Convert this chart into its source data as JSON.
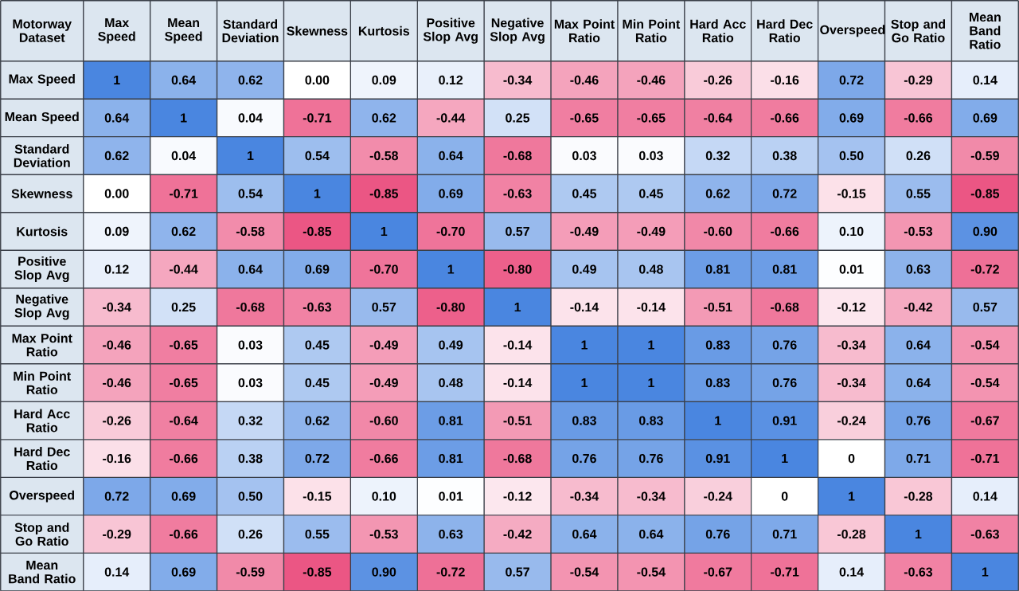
{
  "chart_data": {
    "type": "heatmap",
    "title": "Motorway Dataset",
    "categories": [
      "Max Speed",
      "Mean Speed",
      "Standard Deviation",
      "Skewness",
      "Kurtosis",
      "Positive Slop Avg",
      "Negative Slop Avg",
      "Max Point Ratio",
      "Min Point Ratio",
      "Hard Acc Ratio",
      "Hard Dec Ratio",
      "Overspeed",
      "Stop and Go Ratio",
      "Mean Band Ratio"
    ],
    "y_categories": [
      "Max Speed",
      "Mean Speed",
      "Standard Deviation",
      "Skewness",
      "Kurtosis",
      "Positive Slop Avg",
      "Negative Slop Avg",
      "Max Point Ratio",
      "Min Point Ratio",
      "Hard Acc Ratio",
      "Hard Dec Ratio",
      "Overspeed",
      "Stop and Go Ratio",
      "Mean Band Ratio"
    ],
    "cells": [
      [
        1,
        0.64,
        0.62,
        0.0,
        0.09,
        0.12,
        -0.34,
        -0.46,
        -0.46,
        -0.26,
        -0.16,
        0.72,
        -0.29,
        0.14
      ],
      [
        0.64,
        1,
        0.04,
        -0.71,
        0.62,
        -0.44,
        0.25,
        -0.65,
        -0.65,
        -0.64,
        -0.66,
        0.69,
        -0.66,
        0.69
      ],
      [
        0.62,
        0.04,
        1,
        0.54,
        -0.58,
        0.64,
        -0.68,
        0.03,
        0.03,
        0.32,
        0.38,
        0.5,
        0.26,
        -0.59
      ],
      [
        0.0,
        -0.71,
        0.54,
        1,
        -0.85,
        0.69,
        -0.63,
        0.45,
        0.45,
        0.62,
        0.72,
        -0.15,
        0.55,
        -0.85
      ],
      [
        0.09,
        0.62,
        -0.58,
        -0.85,
        1,
        -0.7,
        0.57,
        -0.49,
        -0.49,
        -0.6,
        -0.66,
        0.1,
        -0.53,
        0.9
      ],
      [
        0.12,
        -0.44,
        0.64,
        0.69,
        -0.7,
        1,
        -0.8,
        0.49,
        0.48,
        0.81,
        0.81,
        0.01,
        0.63,
        -0.72
      ],
      [
        -0.34,
        0.25,
        -0.68,
        -0.63,
        0.57,
        -0.8,
        1,
        -0.14,
        -0.14,
        -0.51,
        -0.68,
        -0.12,
        -0.42,
        0.57
      ],
      [
        -0.46,
        -0.65,
        0.03,
        0.45,
        -0.49,
        0.49,
        -0.14,
        1,
        1,
        0.83,
        0.76,
        -0.34,
        0.64,
        -0.54
      ],
      [
        -0.46,
        -0.65,
        0.03,
        0.45,
        -0.49,
        0.48,
        -0.14,
        1,
        1,
        0.83,
        0.76,
        -0.34,
        0.64,
        -0.54
      ],
      [
        -0.26,
        -0.64,
        0.32,
        0.62,
        -0.6,
        0.81,
        -0.51,
        0.83,
        0.83,
        1,
        0.91,
        -0.24,
        0.76,
        -0.67
      ],
      [
        -0.16,
        -0.66,
        0.38,
        0.72,
        -0.66,
        0.81,
        -0.68,
        0.76,
        0.76,
        0.91,
        1,
        0,
        0.71,
        -0.71
      ],
      [
        0.72,
        0.69,
        0.5,
        -0.15,
        0.1,
        0.01,
        -0.12,
        -0.34,
        -0.34,
        -0.24,
        0,
        1,
        -0.28,
        0.14
      ],
      [
        -0.29,
        -0.66,
        0.26,
        0.55,
        -0.53,
        0.63,
        -0.42,
        0.64,
        0.64,
        0.76,
        0.71,
        -0.28,
        1,
        -0.63
      ],
      [
        0.14,
        0.69,
        -0.59,
        -0.85,
        0.9,
        -0.72,
        0.57,
        -0.54,
        -0.54,
        -0.67,
        -0.71,
        0.14,
        -0.63,
        1
      ]
    ],
    "cell_labels": [
      [
        "1",
        "0.64",
        "0.62",
        "0.00",
        "0.09",
        "0.12",
        "-0.34",
        "-0.46",
        "-0.46",
        "-0.26",
        "-0.16",
        "0.72",
        "-0.29",
        "0.14"
      ],
      [
        "0.64",
        "1",
        "0.04",
        "-0.71",
        "0.62",
        "-0.44",
        "0.25",
        "-0.65",
        "-0.65",
        "-0.64",
        "-0.66",
        "0.69",
        "-0.66",
        "0.69"
      ],
      [
        "0.62",
        "0.04",
        "1",
        "0.54",
        "-0.58",
        "0.64",
        "-0.68",
        "0.03",
        "0.03",
        "0.32",
        "0.38",
        "0.50",
        "0.26",
        "-0.59"
      ],
      [
        "0.00",
        "-0.71",
        "0.54",
        "1",
        "-0.85",
        "0.69",
        "-0.63",
        "0.45",
        "0.45",
        "0.62",
        "0.72",
        "-0.15",
        "0.55",
        "-0.85"
      ],
      [
        "0.09",
        "0.62",
        "-0.58",
        "-0.85",
        "1",
        "-0.70",
        "0.57",
        "-0.49",
        "-0.49",
        "-0.60",
        "-0.66",
        "0.10",
        "-0.53",
        "0.90"
      ],
      [
        "0.12",
        "-0.44",
        "0.64",
        "0.69",
        "-0.70",
        "1",
        "-0.80",
        "0.49",
        "0.48",
        "0.81",
        "0.81",
        "0.01",
        "0.63",
        "-0.72"
      ],
      [
        "-0.34",
        "0.25",
        "-0.68",
        "-0.63",
        "0.57",
        "-0.80",
        "1",
        "-0.14",
        "-0.14",
        "-0.51",
        "-0.68",
        "-0.12",
        "-0.42",
        "0.57"
      ],
      [
        "-0.46",
        "-0.65",
        "0.03",
        "0.45",
        "-0.49",
        "0.49",
        "-0.14",
        "1",
        "1",
        "0.83",
        "0.76",
        "-0.34",
        "0.64",
        "-0.54"
      ],
      [
        "-0.46",
        "-0.65",
        "0.03",
        "0.45",
        "-0.49",
        "0.48",
        "-0.14",
        "1",
        "1",
        "0.83",
        "0.76",
        "-0.34",
        "0.64",
        "-0.54"
      ],
      [
        "-0.26",
        "-0.64",
        "0.32",
        "0.62",
        "-0.60",
        "0.81",
        "-0.51",
        "0.83",
        "0.83",
        "1",
        "0.91",
        "-0.24",
        "0.76",
        "-0.67"
      ],
      [
        "-0.16",
        "-0.66",
        "0.38",
        "0.72",
        "-0.66",
        "0.81",
        "-0.68",
        "0.76",
        "0.76",
        "0.91",
        "1",
        "0",
        "0.71",
        "-0.71"
      ],
      [
        "0.72",
        "0.69",
        "0.50",
        "-0.15",
        "0.10",
        "0.01",
        "-0.12",
        "-0.34",
        "-0.34",
        "-0.24",
        "0",
        "1",
        "-0.28",
        "0.14"
      ],
      [
        "-0.29",
        "-0.66",
        "0.26",
        "0.55",
        "-0.53",
        "0.63",
        "-0.42",
        "0.64",
        "0.64",
        "0.76",
        "0.71",
        "-0.28",
        "1",
        "-0.63"
      ],
      [
        "0.14",
        "0.69",
        "-0.59",
        "-0.85",
        "0.90",
        "-0.72",
        "0.57",
        "-0.54",
        "-0.54",
        "-0.67",
        "-0.71",
        "0.14",
        "-0.63",
        "1"
      ]
    ]
  }
}
